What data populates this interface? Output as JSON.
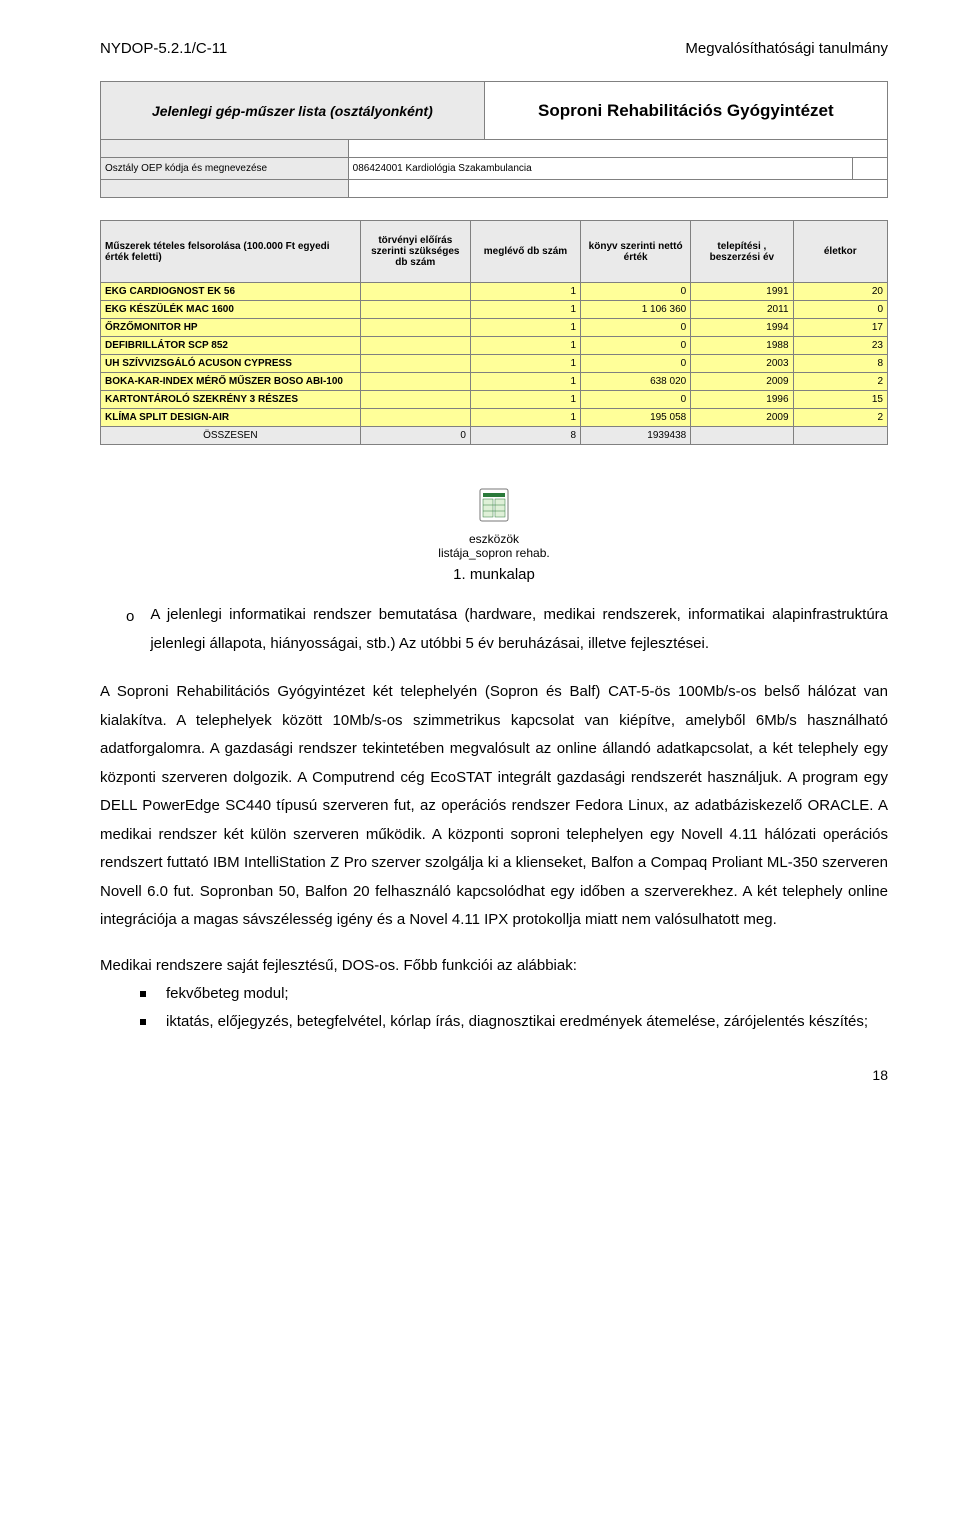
{
  "header": {
    "left": "NYDOP-5.2.1/C-11",
    "right": "Megvalósíthatósági tanulmány"
  },
  "table1": {
    "title_left": "Jelenlegi gép-műszer lista (osztályonként)",
    "title_right": "Soproni Rehabilitációs Gyógyintézet",
    "dept_label": "Osztály OEP kódja és megnevezése",
    "dept_value": "086424001 Kardiológia Szakambulancia"
  },
  "table2": {
    "columns": [
      "Műszerek tételes felsorolása (100.000 Ft egyedi érték feletti)",
      "törvényi előírás szerinti szükséges db szám",
      "meglévő db szám",
      "könyv szerinti nettó érték",
      "telepítési , beszerzési év",
      "életkor"
    ],
    "rows": [
      {
        "name": "EKG CARDIOGNOST EK 56",
        "c1": "",
        "c2": "1",
        "c3": "0",
        "c4": "1991",
        "c5": "20"
      },
      {
        "name": "EKG KÉSZÜLÉK MAC 1600",
        "c1": "",
        "c2": "1",
        "c3": "1 106 360",
        "c4": "2011",
        "c5": "0"
      },
      {
        "name": "ŐRZŐMONITOR HP",
        "c1": "",
        "c2": "1",
        "c3": "0",
        "c4": "1994",
        "c5": "17"
      },
      {
        "name": "DEFIBRILLÁTOR SCP 852",
        "c1": "",
        "c2": "1",
        "c3": "0",
        "c4": "1988",
        "c5": "23"
      },
      {
        "name": "UH SZÍVVIZSGÁLÓ ACUSON CYPRESS",
        "c1": "",
        "c2": "1",
        "c3": "0",
        "c4": "2003",
        "c5": "8"
      },
      {
        "name": "BOKA-KAR-INDEX MÉRŐ MŰSZER BOSO ABI-100",
        "c1": "",
        "c2": "1",
        "c3": "638 020",
        "c4": "2009",
        "c5": "2"
      },
      {
        "name": "KARTONTÁROLÓ SZEKRÉNY 3 RÉSZES",
        "c1": "",
        "c2": "1",
        "c3": "0",
        "c4": "1996",
        "c5": "15"
      },
      {
        "name": "KLÍMA SPLIT DESIGN-AIR",
        "c1": "",
        "c2": "1",
        "c3": "195 058",
        "c4": "2009",
        "c5": "2"
      }
    ],
    "total": {
      "name": "ÖSSZESEN",
      "c1": "0",
      "c2": "8",
      "c3": "1939438",
      "c4": "",
      "c5": ""
    },
    "row_bg": "#ffff99",
    "header_bg": "#eaeaea",
    "total_bg": "#eaeaea"
  },
  "icon": {
    "line1": "eszközök",
    "line2": "listája_sopron rehab.",
    "title": "1. munkalap"
  },
  "bullet": {
    "marker": "o",
    "text": "A jelenlegi informatikai rendszer bemutatása (hardware, medikai rendszerek, informatikai alapinfrastruktúra jelenlegi állapota, hiányosságai, stb.) Az utóbbi 5 év beruházásai, illetve fejlesztései."
  },
  "para1": "A Soproni Rehabilitációs Gyógyintézet két telephelyén (Sopron és Balf) CAT-5-ös 100Mb/s-os belső hálózat van kialakítva. A telephelyek között 10Mb/s-os szimmetrikus kapcsolat van kiépítve, amelyből 6Mb/s használható adatforgalomra. A gazdasági rendszer tekintetében megvalósult az online állandó adatkapcsolat, a két telephely egy központi szerveren dolgozik. A Computrend cég EcoSTAT integrált gazdasági rendszerét használjuk. A program egy DELL PowerEdge SC440 típusú szerveren fut, az operációs rendszer Fedora Linux, az adatbáziskezelő ORACLE. A medikai rendszer két külön szerveren működik. A központi soproni telephelyen egy Novell 4.11 hálózati operációs rendszert futtató IBM IntelliStation Z Pro szerver szolgálja ki a klienseket, Balfon a Compaq Proliant ML-350 szerveren Novell 6.0 fut. Sopronban 50, Balfon 20 felhasználó kapcsolódhat egy időben a szerverekhez. A két telephely online integrációja a magas sávszélesség igény és a Novel 4.11 IPX protokollja miatt nem valósulhatott meg.",
  "footpara": "Medikai rendszere saját fejlesztésű, DOS-os. Főbb funkciói az alábbiak:",
  "footlist": [
    "fekvőbeteg modul;",
    "iktatás, előjegyzés, betegfelvétel, kórlap írás, diagnosztikai eredmények átemelése, zárójelentés készítés;"
  ],
  "page_number": "18"
}
